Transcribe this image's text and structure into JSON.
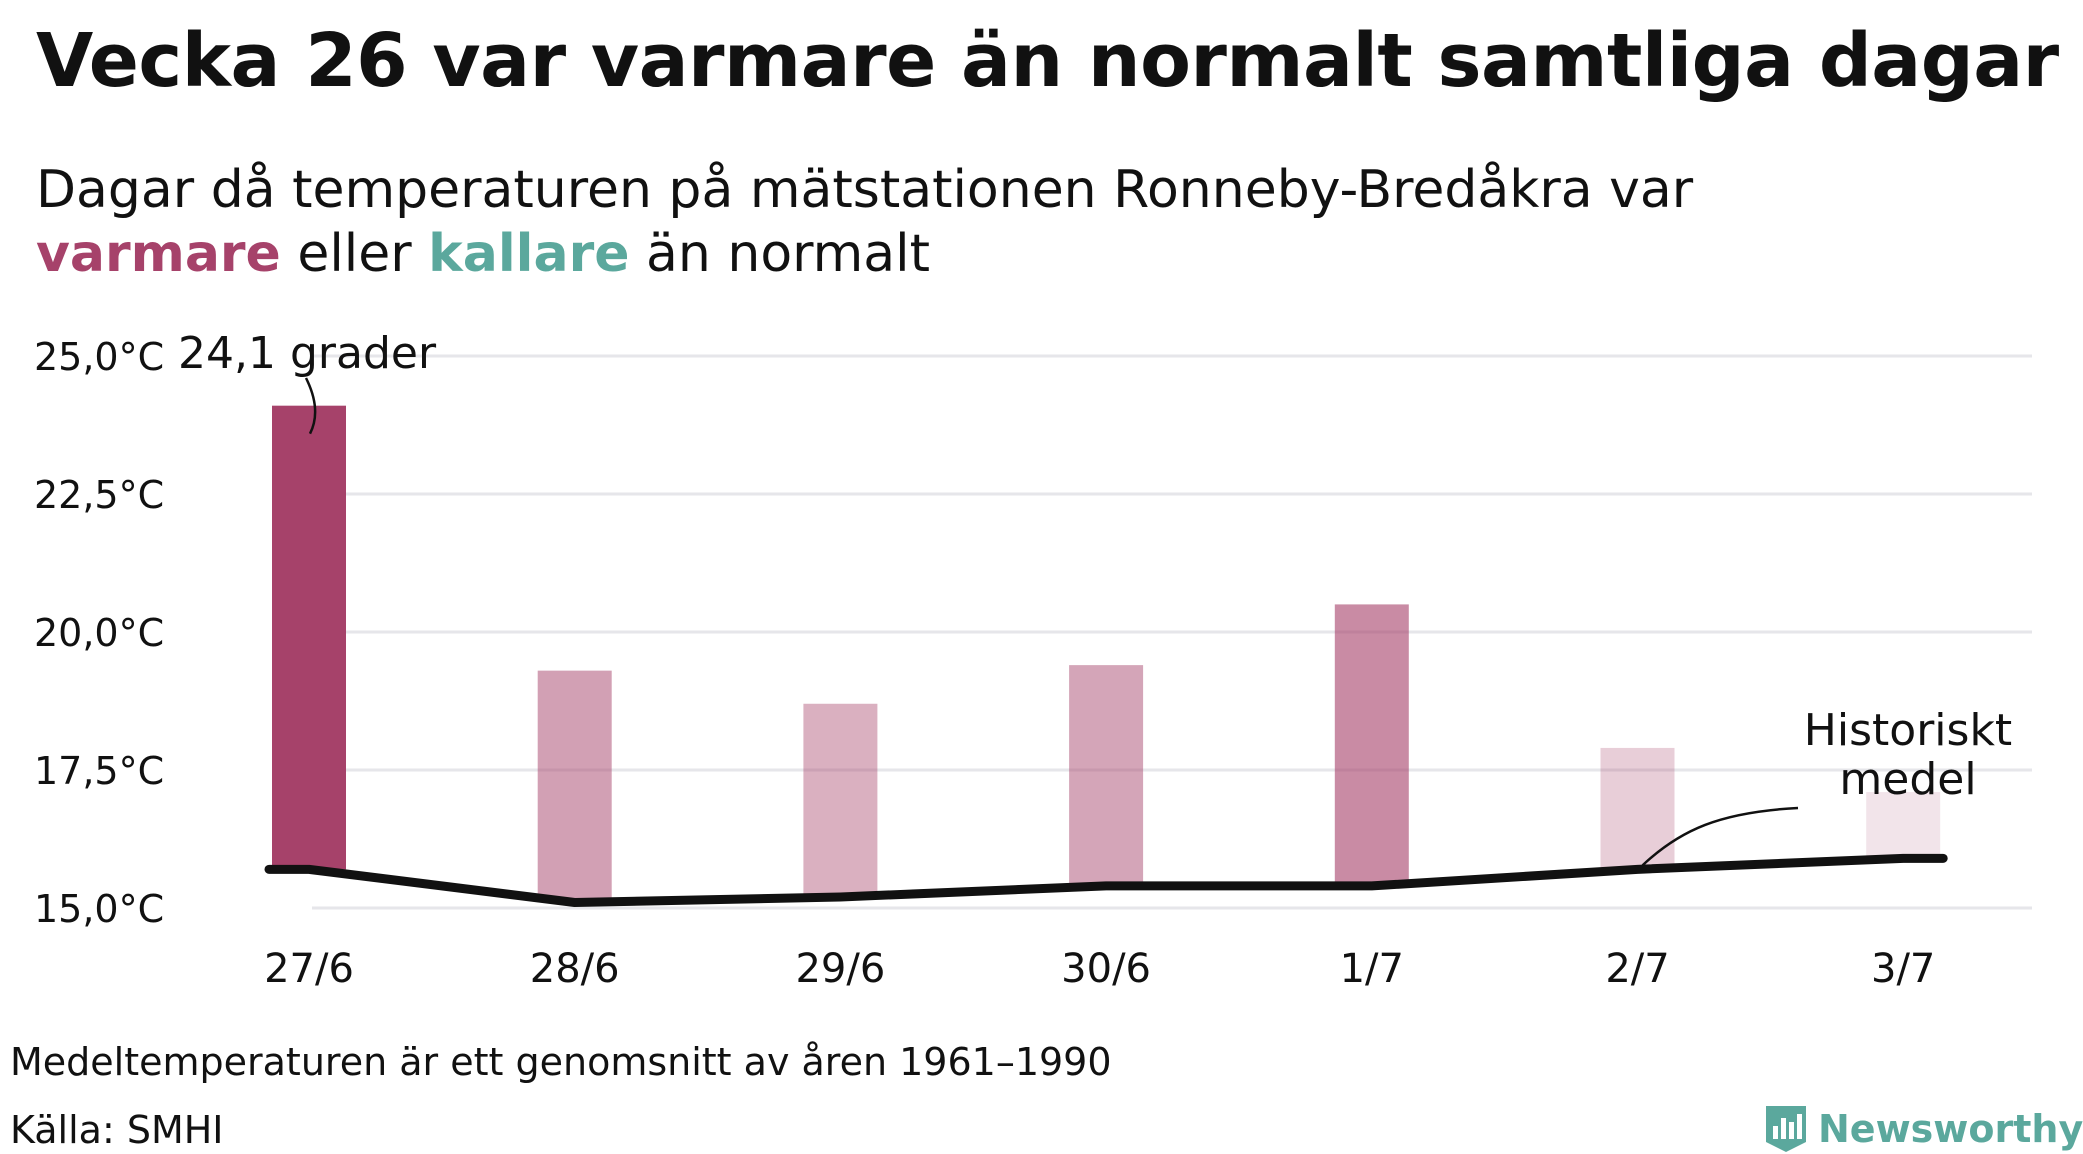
{
  "title": "Vecka 26 var varmare än normalt samtliga dagar",
  "subtitle": {
    "line1": "Dagar då temperaturen på mätstationen Ronneby-Bredåkra var",
    "warm_word": "varmare",
    "middle": "eller",
    "cold_word": "kallare",
    "end": "än normalt"
  },
  "colors": {
    "warm": "#a6426a",
    "cold": "#5ba89d",
    "mean_line": "#111111",
    "grid": "#e6e6ea"
  },
  "chart_data": {
    "type": "bar",
    "categories": [
      "27/6",
      "28/6",
      "29/6",
      "30/6",
      "1/7",
      "2/7",
      "3/7"
    ],
    "series": [
      {
        "name": "varmare",
        "values": [
          24.1,
          19.3,
          18.7,
          19.4,
          20.5,
          17.9,
          17.1
        ]
      },
      {
        "name": "Historiskt medel",
        "values": [
          15.7,
          15.1,
          15.2,
          15.4,
          15.4,
          15.7,
          15.9
        ]
      }
    ],
    "ylim": [
      15.0,
      25.0
    ],
    "yticks": [
      "15,0°C",
      "17,5°C",
      "20,0°C",
      "22,5°C",
      "25,0°C"
    ],
    "ytick_values": [
      15.0,
      17.5,
      20.0,
      22.5,
      25.0
    ],
    "grid": true,
    "annotations": {
      "max_label": "24,1 grader",
      "mean_label_line1": "Historiskt",
      "mean_label_line2": "medel"
    }
  },
  "footer": {
    "note": "Medeltemperaturen är ett genomsnitt av åren 1961–1990",
    "source": "Källa: SMHI",
    "brand": "Newsworthy",
    "brand_icon": "newsworthy-logo-icon"
  }
}
